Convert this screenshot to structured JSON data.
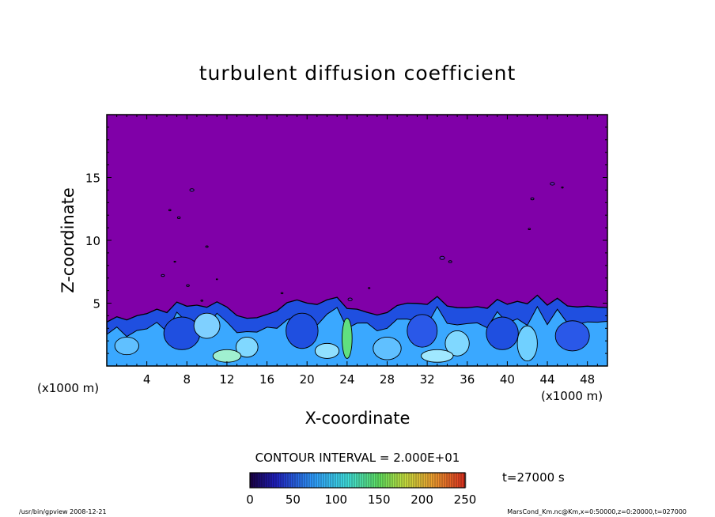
{
  "chart_data": {
    "type": "heatmap",
    "title": "turbulent diffusion coefficient",
    "xlabel": "X-coordinate",
    "ylabel": "Z-coordinate",
    "x_unit_left": "(x1000 m)",
    "x_unit_right": "(x1000 m)",
    "xlim": [
      0,
      50
    ],
    "ylim": [
      0,
      20
    ],
    "xticks": [
      4,
      8,
      12,
      16,
      20,
      24,
      28,
      32,
      36,
      40,
      44,
      48
    ],
    "yticks": [
      5,
      10,
      15
    ],
    "contour_interval_label": "CONTOUR INTERVAL = 2.000E+01",
    "time_label": "t=27000 s",
    "colorbar_range": [
      0,
      250
    ],
    "colorbar_ticks": [
      0,
      50,
      100,
      150,
      200,
      250
    ],
    "background_value": 0,
    "background_color": "#8000a8",
    "mixed_layer_top_approx": [
      [
        0,
        3.5
      ],
      [
        2,
        3.9
      ],
      [
        4,
        4.2
      ],
      [
        6,
        4.5
      ],
      [
        8,
        4.7
      ],
      [
        10,
        4.8
      ],
      [
        12,
        4.6
      ],
      [
        14,
        3.8
      ],
      [
        16,
        4.0
      ],
      [
        18,
        5.0
      ],
      [
        20,
        5.2
      ],
      [
        22,
        5.0
      ],
      [
        24,
        4.8
      ],
      [
        26,
        4.0
      ],
      [
        28,
        4.3
      ],
      [
        30,
        4.9
      ],
      [
        32,
        5.1
      ],
      [
        34,
        4.8
      ],
      [
        36,
        4.6
      ],
      [
        38,
        4.8
      ],
      [
        40,
        5.0
      ],
      [
        42,
        5.2
      ],
      [
        44,
        5.0
      ],
      [
        46,
        4.8
      ],
      [
        48,
        4.7
      ],
      [
        50,
        4.5
      ]
    ]
  },
  "footer": {
    "left": "/usr/bin/gpview  2008-12-21",
    "right": "MarsCond_Km.nc@Km,x=0:50000,z=0:20000,t=027000"
  }
}
